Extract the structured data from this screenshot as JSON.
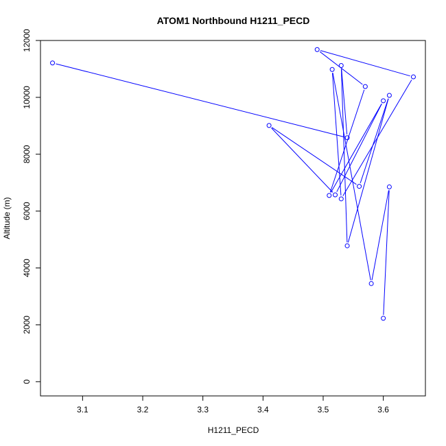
{
  "chart_data": {
    "type": "line",
    "title": "ATOM1 Northbound H1211_PECD",
    "xlabel": "H1211_PECD",
    "ylabel": "Altitude (m)",
    "xlim": [
      3.03,
      3.67
    ],
    "ylim": [
      -500,
      12000
    ],
    "xticks": [
      3.1,
      3.2,
      3.3,
      3.4,
      3.5,
      3.6
    ],
    "xtick_labels": [
      "3.1",
      "3.2",
      "3.3",
      "3.4",
      "3.5",
      "3.6"
    ],
    "yticks": [
      0,
      2000,
      4000,
      6000,
      8000,
      10000,
      12000
    ],
    "ytick_labels": [
      "0",
      "2000",
      "4000",
      "6000",
      "8000",
      "10000",
      "12000"
    ],
    "grid": false,
    "color": "#0000ff",
    "markers": "open-circle",
    "series": [
      {
        "x": [
          3.6,
          3.61,
          3.58,
          3.515,
          3.53,
          3.65,
          3.49,
          3.57,
          3.51,
          3.6,
          3.52,
          3.41,
          3.56,
          3.61,
          3.54,
          3.53,
          3.54,
          3.05
        ],
        "y": [
          2230,
          6850,
          3450,
          10980,
          6430,
          10720,
          11680,
          10380,
          6550,
          9880,
          6570,
          9010,
          6870,
          10070,
          4780,
          11120,
          8580,
          11210
        ]
      }
    ]
  }
}
